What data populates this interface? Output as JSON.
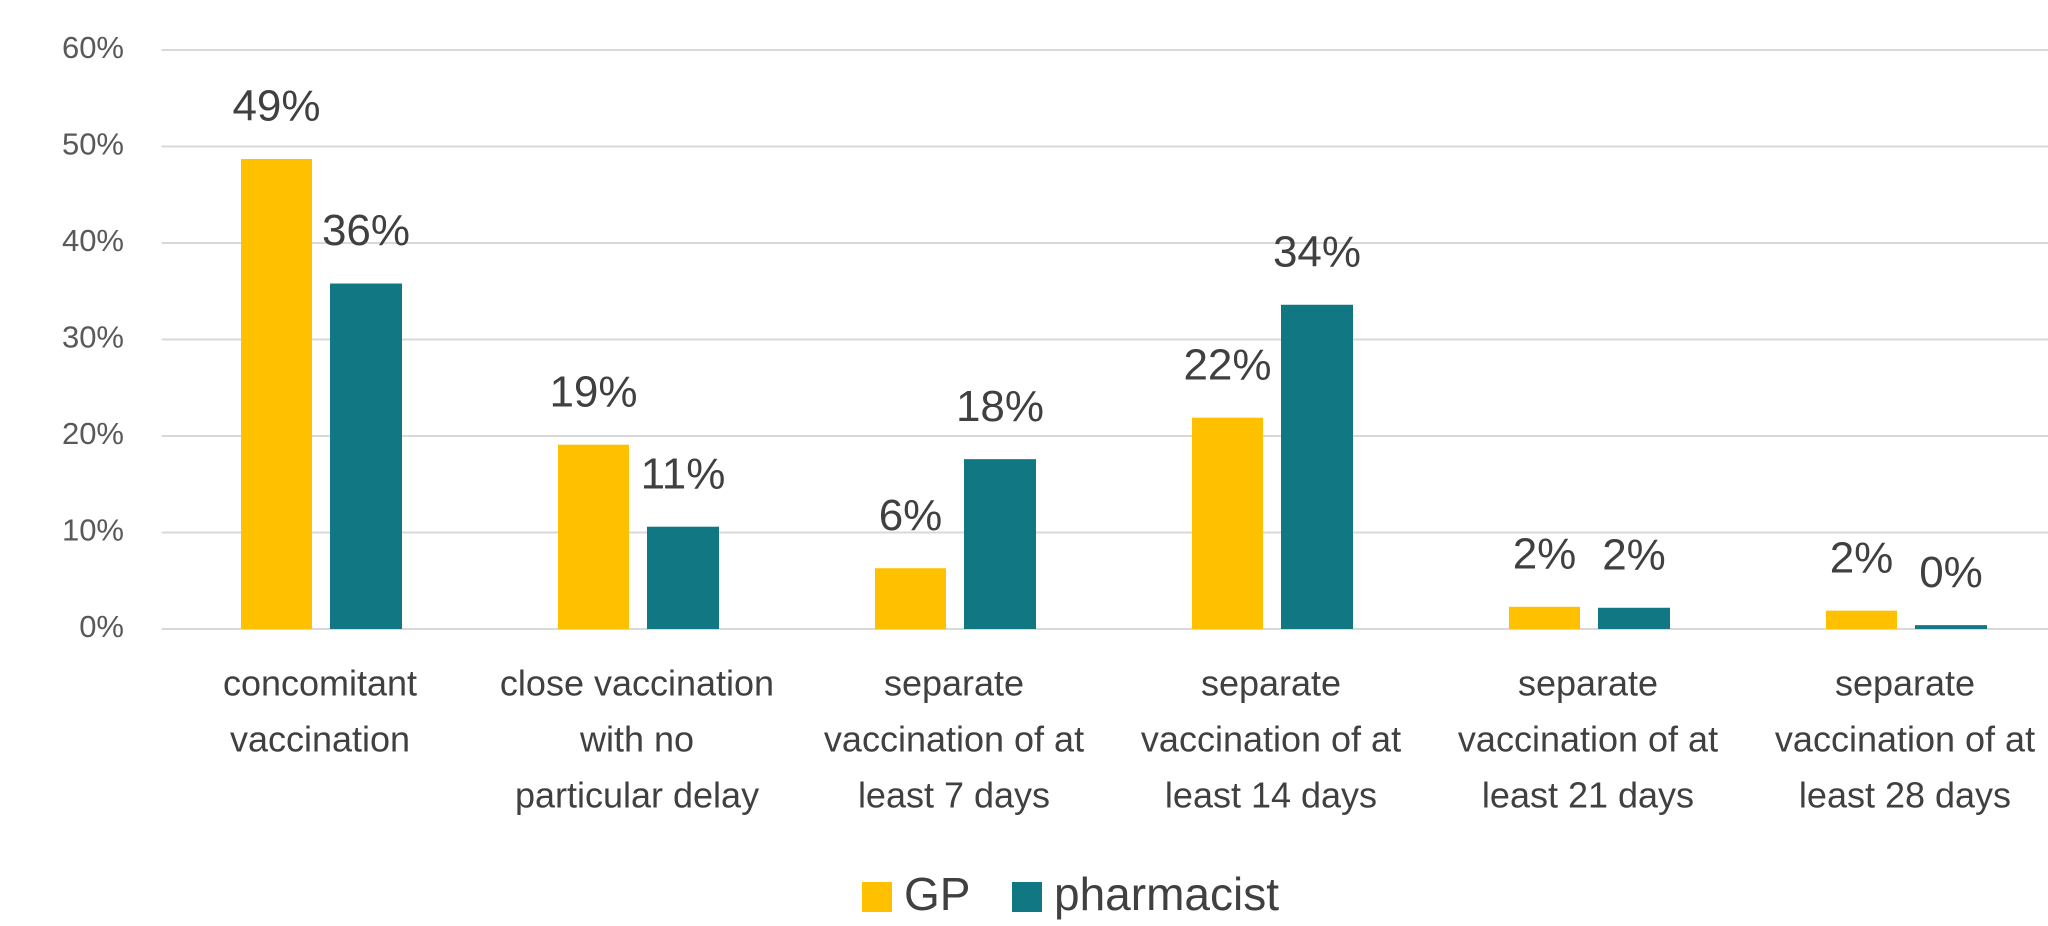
{
  "chart_data": {
    "type": "bar",
    "categories": [
      [
        "concomitant",
        "vaccination"
      ],
      [
        "close vaccination",
        "with no",
        "particular delay"
      ],
      [
        "separate",
        "vaccination of at",
        "least 7 days"
      ],
      [
        "separate",
        "vaccination of at",
        "least 14 days"
      ],
      [
        "separate",
        "vaccination of at",
        "least 21 days"
      ],
      [
        "separate",
        "vaccination of at",
        "least 28 days"
      ]
    ],
    "series": [
      {
        "name": "GP",
        "color": "#ffc000",
        "values": [
          48.7,
          19.1,
          6.3,
          21.9,
          2.3,
          1.9
        ],
        "value_labels": [
          "49%",
          "19%",
          "6%",
          "22%",
          "2%",
          "2%"
        ]
      },
      {
        "name": "pharmacist",
        "color": "#107783",
        "values": [
          35.8,
          10.6,
          17.6,
          33.6,
          2.2,
          0.4
        ],
        "value_labels": [
          "36%",
          "11%",
          "18%",
          "34%",
          "2%",
          "0%"
        ]
      }
    ],
    "ylim": [
      0,
      60
    ],
    "yticks": [
      {
        "value": 0,
        "label": "0%"
      },
      {
        "value": 10,
        "label": "10%"
      },
      {
        "value": 20,
        "label": "20%"
      },
      {
        "value": 30,
        "label": "30%"
      },
      {
        "value": 40,
        "label": "40%"
      },
      {
        "value": 50,
        "label": "50%"
      },
      {
        "value": 60,
        "label": "60%"
      }
    ],
    "grid": true,
    "legend": "bottom"
  }
}
